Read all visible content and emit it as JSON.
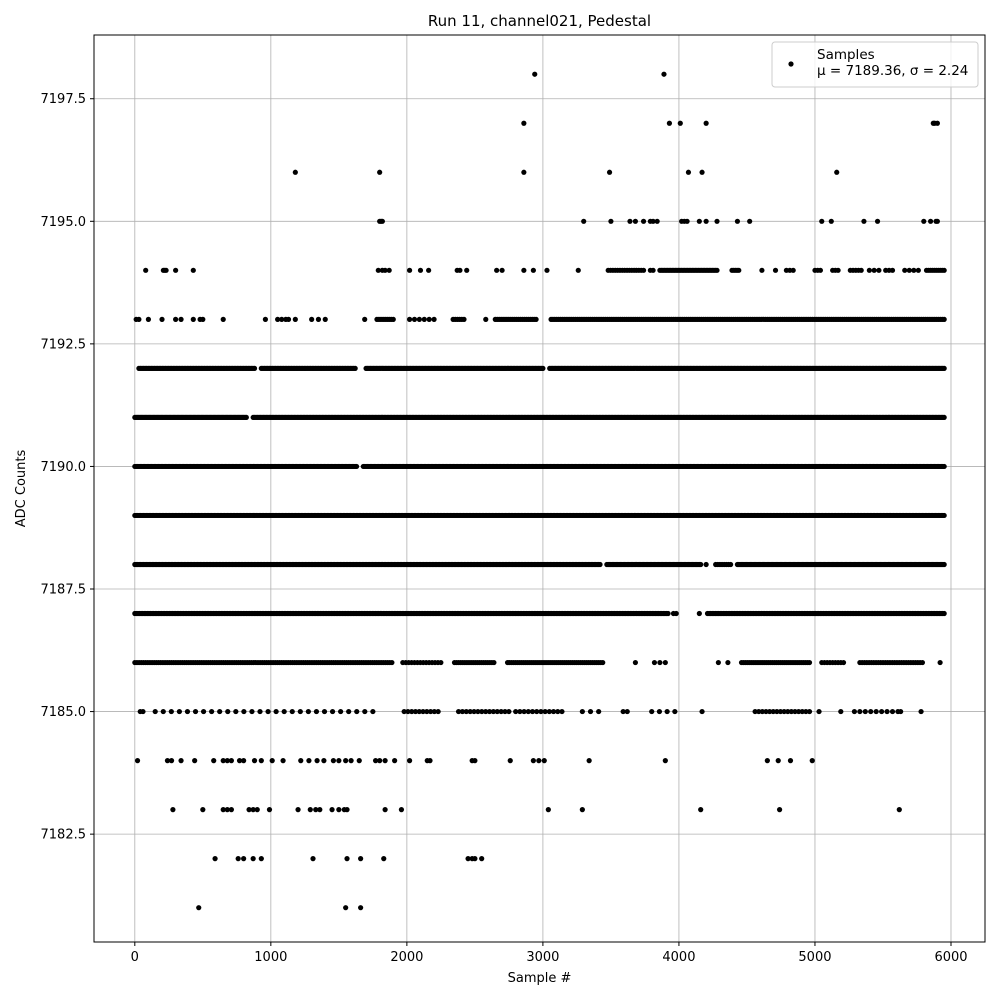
{
  "chart_data": {
    "type": "scatter",
    "title": "Run 11, channel021, Pedestal",
    "xlabel": "Sample #",
    "ylabel": "ADC Counts",
    "xlim": [
      -300,
      6250
    ],
    "ylim": [
      7180.3,
      7198.8
    ],
    "xticks": [
      0,
      1000,
      2000,
      3000,
      4000,
      5000,
      6000
    ],
    "yticks": [
      7182.5,
      7185.0,
      7187.5,
      7190.0,
      7192.5,
      7195.0,
      7197.5
    ],
    "xtick_labels": [
      "0",
      "1000",
      "2000",
      "3000",
      "4000",
      "5000",
      "6000"
    ],
    "ytick_labels": [
      "7182.5",
      "7185.0",
      "7187.5",
      "7190.0",
      "7192.5",
      "7195.0",
      "7197.5"
    ],
    "grid": true,
    "legend_position": "top-right",
    "marker_color": "#000000",
    "series": [
      {
        "name": "Samples",
        "stats_label": "μ = 7189.36, σ = 2.24",
        "bands": [
          {
            "y": 7181,
            "x": [
              470,
              1550,
              1660
            ]
          },
          {
            "y": 7182,
            "x": [
              590,
              760,
              800,
              870,
              930,
              1310,
              1560,
              1660,
              1830,
              2450,
              2480,
              2500,
              2550
            ]
          },
          {
            "y": 7183,
            "x": [
              280,
              500,
              650,
              680,
              710,
              840,
              870,
              900,
              990,
              1200,
              1290,
              1330,
              1360,
              1450,
              1500,
              1540,
              1560,
              1840,
              1960,
              3040,
              3290,
              4160,
              4740,
              5620
            ]
          },
          {
            "y": 7184,
            "x": [
              20,
              240,
              270,
              340,
              440,
              580,
              650,
              680,
              710,
              770,
              800,
              880,
              930,
              1010,
              1090,
              1220,
              1280,
              1340,
              1390,
              1460,
              1500,
              1550,
              1590,
              1650,
              1770,
              1800,
              1840,
              1910,
              2020,
              2150,
              2170,
              2480,
              2500,
              2760,
              2930,
              2970,
              3010,
              3340,
              3900,
              4650,
              4730,
              4820,
              4980
            ]
          },
          {
            "y": 7185,
            "x": [
              40,
              60
            ],
            "ranges": [
              [
                150,
                1750,
                28
              ],
              [
                1980,
                2230,
                10
              ],
              [
                2380,
                2750,
                14
              ],
              [
                2800,
                3140,
                12
              ],
              [
                3290,
                3410,
                3
              ],
              [
                3590,
                3620,
                2
              ],
              [
                3800,
                3970,
                4
              ],
              [
                4170,
                4180,
                1
              ],
              [
                4560,
                4960,
                16
              ],
              [
                5030,
                5040,
                1
              ],
              [
                5190,
                5200,
                1
              ],
              [
                5290,
                5570,
                8
              ],
              [
                5610,
                5630,
                2
              ],
              [
                5780,
                5790,
                1
              ]
            ]
          },
          {
            "y": 7186,
            "x": [],
            "ranges": [
              [
                0,
                1890,
                120
              ],
              [
                1970,
                2250,
                14
              ],
              [
                2350,
                2640,
                20
              ],
              [
                2740,
                3440,
                48
              ],
              [
                3680,
                3690,
                1
              ],
              [
                3820,
                3900,
                3
              ],
              [
                4290,
                4300,
                1
              ],
              [
                4360,
                4370,
                1
              ],
              [
                4460,
                4960,
                36
              ],
              [
                5050,
                5210,
                9
              ],
              [
                5330,
                5790,
                28
              ],
              [
                5920,
                5930,
                1
              ]
            ]
          },
          {
            "y": 7187,
            "x": [],
            "ranges": [
              [
                0,
                3920,
                340
              ],
              [
                3960,
                3980,
                2
              ],
              [
                4150,
                4160,
                1
              ],
              [
                4210,
                5950,
                150
              ]
            ]
          },
          {
            "y": 7188,
            "x": [],
            "ranges": [
              [
                0,
                3420,
                320
              ],
              [
                3470,
                4160,
                70
              ],
              [
                4200,
                4210,
                1
              ],
              [
                4270,
                4380,
                8
              ],
              [
                4430,
                5950,
                160
              ]
            ]
          },
          {
            "y": 7189,
            "x": [],
            "ranges": [
              [
                0,
                5950,
                560
              ]
            ]
          },
          {
            "y": 7190,
            "x": [],
            "ranges": [
              [
                0,
                1630,
                160
              ],
              [
                1680,
                5950,
                420
              ]
            ]
          },
          {
            "y": 7191,
            "x": [],
            "ranges": [
              [
                0,
                820,
                85
              ],
              [
                870,
                5950,
                470
              ]
            ]
          },
          {
            "y": 7192,
            "x": [],
            "ranges": [
              [
                30,
                880,
                75
              ],
              [
                930,
                1620,
                60
              ],
              [
                1700,
                3000,
                120
              ],
              [
                3050,
                5950,
                270
              ]
            ]
          },
          {
            "y": 7193,
            "x": [
              10,
              30,
              100,
              200,
              300,
              340,
              430,
              480,
              500,
              650,
              960,
              1050,
              1080,
              1110,
              1130,
              1180,
              1300,
              1350,
              1400,
              1690
            ],
            "ranges": [
              [
                1780,
                1900,
                9
              ],
              [
                2020,
                2200,
                6
              ],
              [
                2340,
                2420,
                6
              ],
              [
                2580,
                2590,
                1
              ],
              [
                2650,
                2950,
                22
              ],
              [
                3060,
                5950,
                210
              ]
            ]
          },
          {
            "y": 7194,
            "x": [
              80,
              210,
              220,
              230,
              300,
              430,
              1790,
              1820,
              1840,
              1870,
              2020,
              2100,
              2160,
              2370,
              2390,
              2440,
              2660,
              2700,
              2860,
              2930,
              3030,
              3260
            ],
            "ranges": [
              [
                3480,
                3740,
                16
              ],
              [
                3790,
                3810,
                2
              ],
              [
                3860,
                4280,
                38
              ],
              [
                4390,
                4440,
                5
              ],
              [
                4610,
                4620,
                1
              ],
              [
                4710,
                4720,
                1
              ],
              [
                4790,
                4840,
                3
              ],
              [
                5000,
                5040,
                3
              ],
              [
                5130,
                5170,
                3
              ],
              [
                5260,
                5340,
                5
              ],
              [
                5400,
                5470,
                3
              ],
              [
                5520,
                5570,
                3
              ],
              [
                5660,
                5760,
                4
              ],
              [
                5820,
                5950,
                10
              ]
            ]
          },
          {
            "y": 7195,
            "x": [
              1800,
              1810,
              1820,
              3300,
              3500,
              3640,
              3680,
              3740,
              3790,
              3810,
              3840,
              4020,
              4040,
              4060,
              4150,
              4200,
              4280,
              4430,
              4520,
              5050,
              5120,
              5360,
              5460,
              5800,
              5850,
              5890,
              5900
            ]
          },
          {
            "y": 7196,
            "x": [
              1180,
              1800,
              2860,
              3490,
              4070,
              4170,
              5160
            ]
          },
          {
            "y": 7197,
            "x": [
              2860,
              3930,
              4010,
              4200,
              5870,
              5880,
              5900
            ]
          },
          {
            "y": 7198,
            "x": [
              2940,
              3890
            ]
          }
        ]
      }
    ]
  }
}
